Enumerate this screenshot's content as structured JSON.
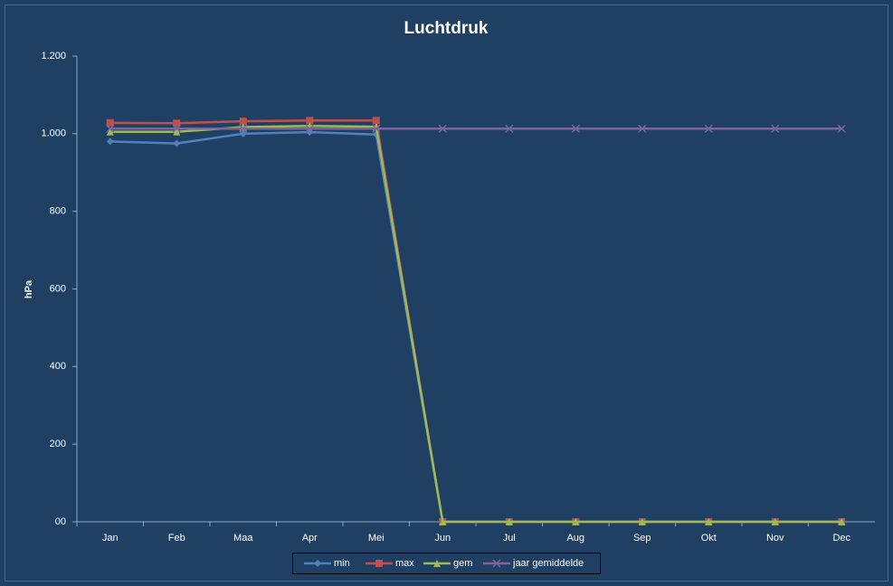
{
  "chart_data": {
    "type": "line",
    "title": "Luchtdruk",
    "y_label": "hPa",
    "categories": [
      "Jan",
      "Feb",
      "Maa",
      "Apr",
      "Mei",
      "Jun",
      "Jul",
      "Aug",
      "Sep",
      "Okt",
      "Nov",
      "Dec"
    ],
    "series": [
      {
        "name": "min",
        "color": "#4f81bd",
        "marker": "diamond",
        "values": [
          980,
          975,
          1000,
          1004,
          998,
          0,
          0,
          0,
          0,
          0,
          0,
          0
        ]
      },
      {
        "name": "max",
        "color": "#c0504d",
        "marker": "square",
        "values": [
          1028,
          1027,
          1032,
          1034,
          1034,
          0,
          0,
          0,
          0,
          0,
          0,
          0
        ]
      },
      {
        "name": "gem",
        "color": "#9bbb59",
        "marker": "triangle",
        "values": [
          1005,
          1005,
          1017,
          1020,
          1018,
          0,
          0,
          0,
          0,
          0,
          0,
          0
        ]
      },
      {
        "name": "jaar gemiddelde",
        "color": "#8064a2",
        "marker": "x",
        "values": [
          1013,
          1013,
          1013,
          1013,
          1013,
          1013,
          1013,
          1013,
          1013,
          1013,
          1013,
          1013
        ]
      }
    ],
    "ylim": [
      0,
      1200
    ],
    "yticks": [
      {
        "value": 0,
        "label": "00"
      },
      200,
      400,
      600,
      800,
      {
        "value": 1000,
        "label": "1.000"
      },
      {
        "value": 1200,
        "label": "1.200"
      }
    ],
    "grid": false,
    "legend": "bottom"
  }
}
